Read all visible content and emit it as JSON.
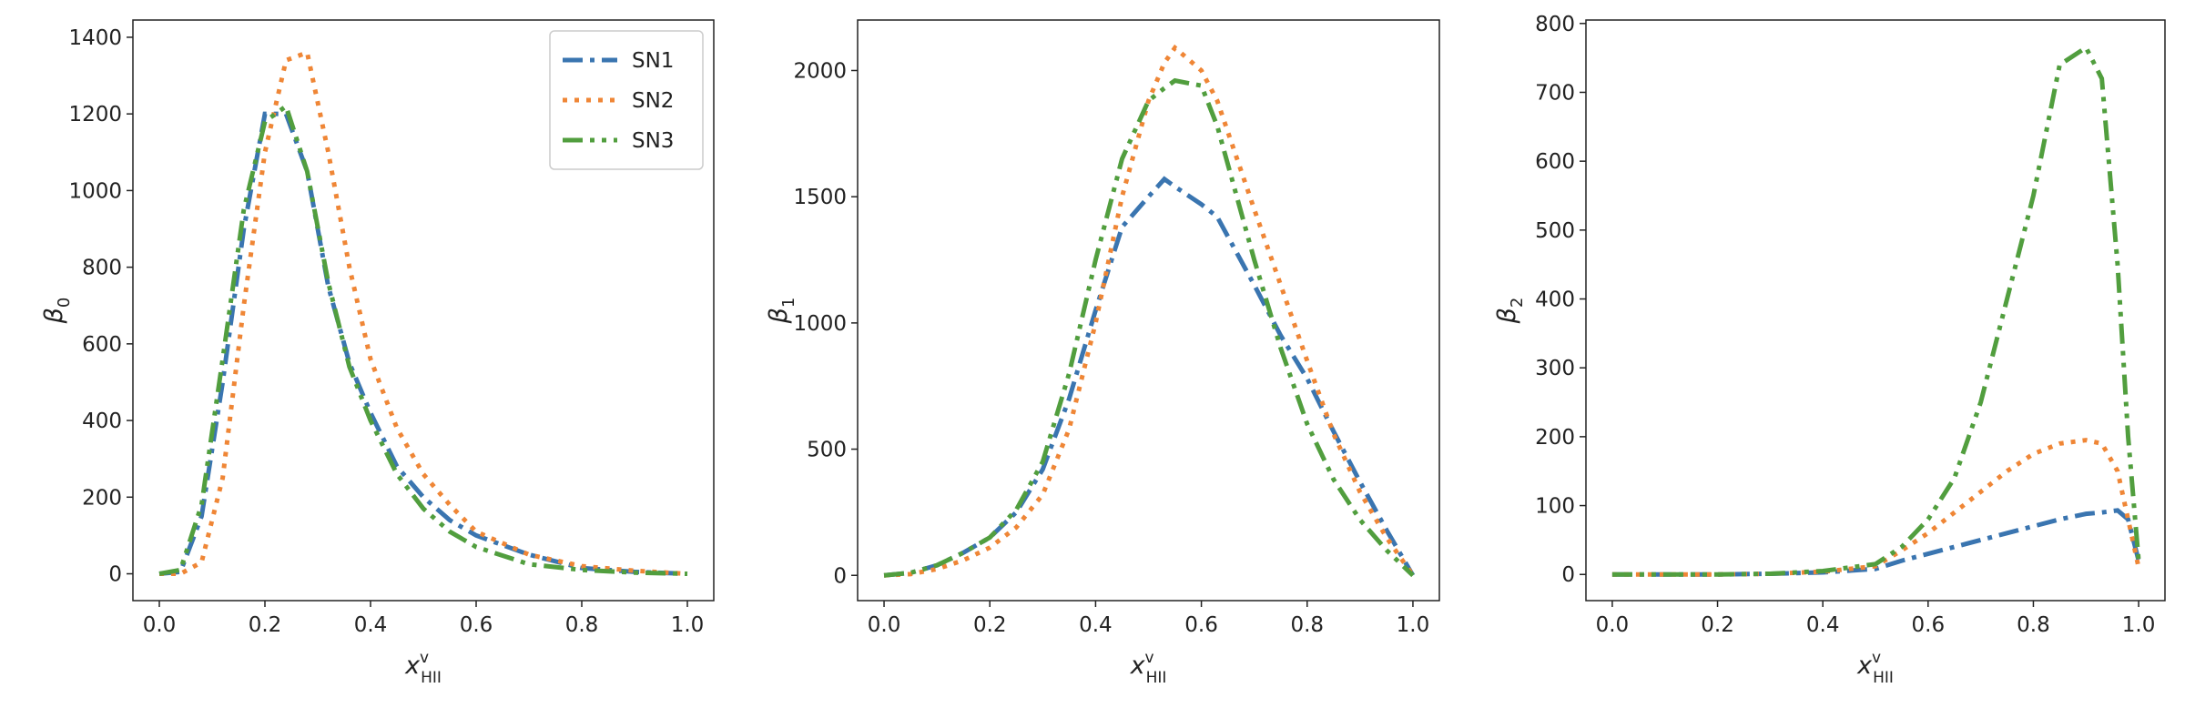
{
  "chart_data": [
    {
      "type": "line",
      "xlabel": {
        "base": "x",
        "sup": "v",
        "sub": "HII"
      },
      "ylabel": {
        "base": "β",
        "sub": "0"
      },
      "xlim": [
        -0.05,
        1.05
      ],
      "ylim": [
        -70,
        1445
      ],
      "xticks": [
        {
          "value": 0,
          "label": "0.0"
        },
        0.2,
        0.4,
        0.6,
        0.8,
        {
          "value": 1,
          "label": "1.0"
        }
      ],
      "yticks": [
        0,
        200,
        400,
        600,
        800,
        1000,
        1200,
        1400
      ],
      "legend": "upper right",
      "x": [
        0,
        0.04,
        0.08,
        0.12,
        0.16,
        0.2,
        0.24,
        0.28,
        0.32,
        0.36,
        0.4,
        0.45,
        0.5,
        0.55,
        0.6,
        0.7,
        0.8,
        0.9,
        1.0
      ],
      "series": [
        {
          "name": "SN1",
          "color": "#3a75b0",
          "linestyle": "-.",
          "values": [
            0,
            5,
            150,
            500,
            900,
            1200,
            1200,
            1050,
            750,
            550,
            420,
            280,
            200,
            140,
            100,
            50,
            15,
            5,
            0
          ]
        },
        {
          "name": "SN2",
          "color": "#ef8636",
          "linestyle": ":",
          "values": [
            0,
            0,
            30,
            250,
            700,
            1100,
            1340,
            1360,
            1100,
            800,
            560,
            380,
            260,
            180,
            110,
            50,
            20,
            8,
            0
          ]
        },
        {
          "name": "SN3",
          "color": "#519e3e",
          "linestyle": "-..",
          "values": [
            0,
            10,
            180,
            560,
            950,
            1180,
            1220,
            1050,
            760,
            540,
            400,
            260,
            170,
            110,
            70,
            25,
            10,
            3,
            0
          ]
        }
      ]
    },
    {
      "type": "line",
      "xlabel": {
        "base": "x",
        "sup": "v",
        "sub": "HII"
      },
      "ylabel": {
        "base": "β",
        "sub": "1"
      },
      "xlim": [
        -0.05,
        1.05
      ],
      "ylim": [
        -100,
        2200
      ],
      "xticks": [
        {
          "value": 0,
          "label": "0.0"
        },
        0.2,
        0.4,
        0.6,
        0.8,
        {
          "value": 1,
          "label": "1.0"
        }
      ],
      "yticks": [
        0,
        500,
        1000,
        1500,
        2000
      ],
      "x": [
        0,
        0.05,
        0.1,
        0.15,
        0.2,
        0.25,
        0.3,
        0.35,
        0.4,
        0.45,
        0.5,
        0.53,
        0.55,
        0.6,
        0.63,
        0.7,
        0.75,
        0.8,
        0.85,
        0.9,
        0.95,
        1.0
      ],
      "series": [
        {
          "color": "#3a75b0",
          "linestyle": "-.",
          "values": [
            0,
            10,
            40,
            90,
            150,
            250,
            420,
            700,
            1050,
            1380,
            1500,
            1570,
            1540,
            1470,
            1420,
            1150,
            950,
            780,
            570,
            370,
            180,
            0
          ]
        },
        {
          "color": "#ef8636",
          "linestyle": ":",
          "values": [
            0,
            5,
            25,
            60,
            110,
            190,
            320,
            580,
            1000,
            1500,
            1880,
            2030,
            2090,
            2000,
            1880,
            1450,
            1150,
            850,
            560,
            330,
            150,
            0
          ]
        },
        {
          "color": "#519e3e",
          "linestyle": "-..",
          "values": [
            0,
            10,
            40,
            90,
            150,
            260,
            450,
            800,
            1250,
            1650,
            1880,
            1930,
            1960,
            1940,
            1780,
            1250,
            900,
            600,
            380,
            220,
            100,
            0
          ]
        }
      ]
    },
    {
      "type": "line",
      "xlabel": {
        "base": "x",
        "sup": "v",
        "sub": "HII"
      },
      "ylabel": {
        "base": "β",
        "sub": "2"
      },
      "xlim": [
        -0.05,
        1.05
      ],
      "ylim": [
        -38,
        805
      ],
      "xticks": [
        {
          "value": 0,
          "label": "0.0"
        },
        0.2,
        0.4,
        0.6,
        0.8,
        {
          "value": 1,
          "label": "1.0"
        }
      ],
      "yticks": [
        0,
        100,
        200,
        300,
        400,
        500,
        600,
        700,
        800
      ],
      "x": [
        0,
        0.1,
        0.2,
        0.3,
        0.4,
        0.5,
        0.55,
        0.6,
        0.65,
        0.7,
        0.75,
        0.8,
        0.85,
        0.9,
        0.93,
        0.96,
        0.98,
        1.0
      ],
      "series": [
        {
          "color": "#3a75b0",
          "linestyle": "-.",
          "values": [
            0,
            0,
            0,
            1,
            3,
            8,
            20,
            30,
            40,
            50,
            60,
            70,
            80,
            88,
            90,
            93,
            80,
            20
          ]
        },
        {
          "color": "#ef8636",
          "linestyle": ":",
          "values": [
            0,
            0,
            0,
            1,
            4,
            12,
            35,
            60,
            90,
            120,
            150,
            175,
            190,
            195,
            190,
            150,
            80,
            10
          ]
        },
        {
          "color": "#519e3e",
          "linestyle": "-..",
          "values": [
            0,
            0,
            0,
            1,
            5,
            15,
            40,
            80,
            140,
            250,
            400,
            550,
            740,
            765,
            720,
            450,
            200,
            20
          ]
        }
      ]
    }
  ]
}
